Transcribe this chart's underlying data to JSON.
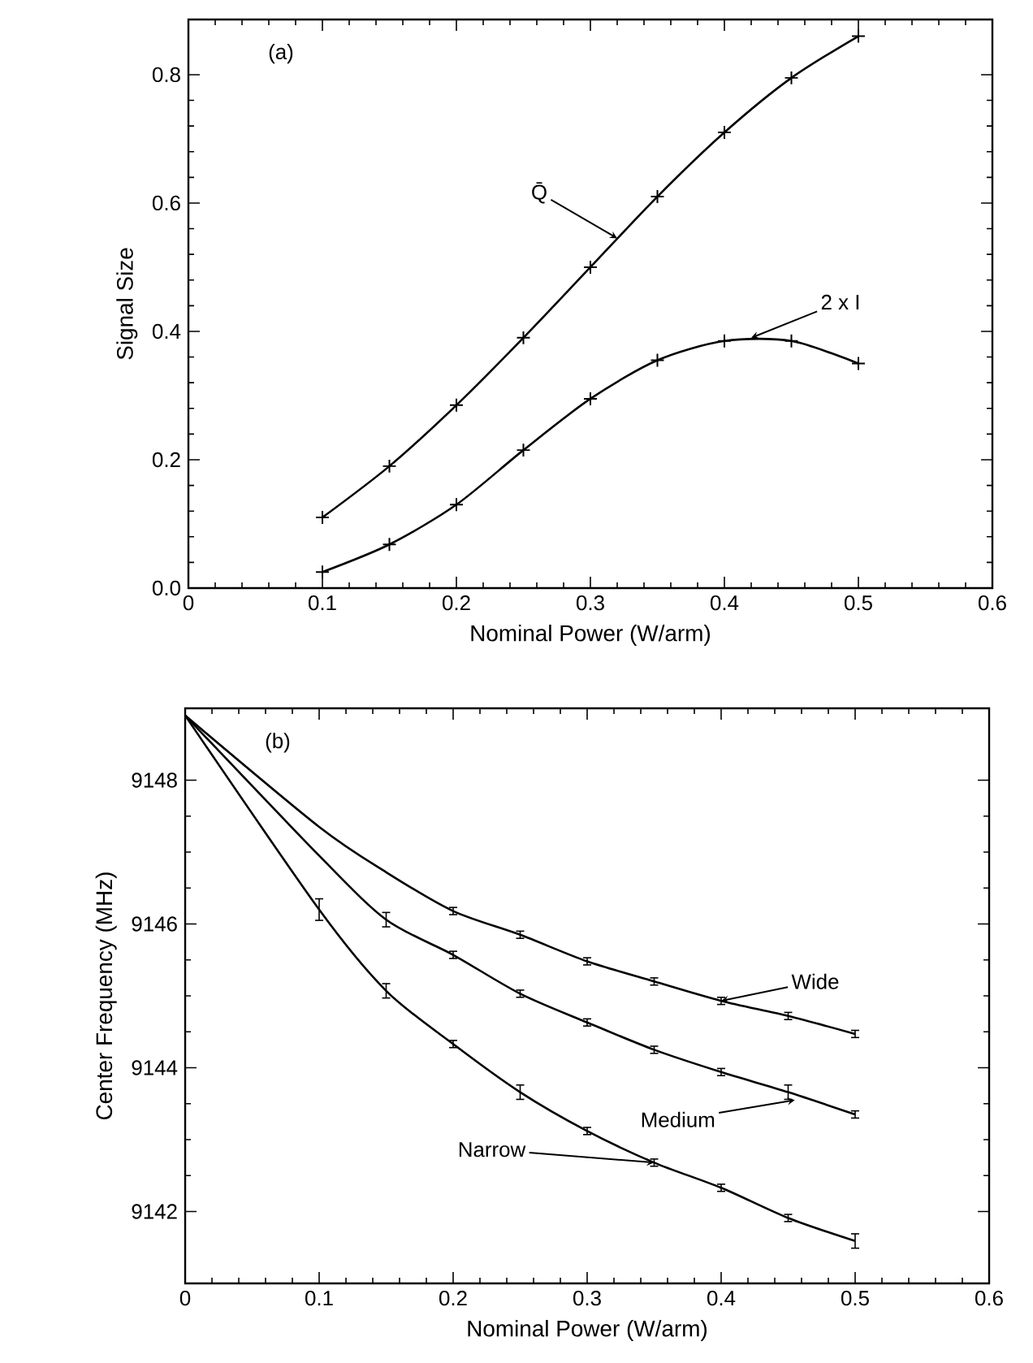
{
  "chart_data": [
    {
      "type": "line",
      "xlabel": "Nominal Power (W/arm)",
      "ylabel": "Signal Size",
      "marker": "cross",
      "line_style": "solid",
      "xlim": [
        0,
        0.6
      ],
      "ylim": [
        0,
        0.886
      ],
      "xticks": [
        0,
        0.1,
        0.2,
        0.3,
        0.4,
        0.5,
        0.6
      ],
      "yticks": [
        {
          "value": 0,
          "label": "0.0"
        },
        0.2,
        0.4,
        0.6,
        0.8
      ],
      "series": [
        {
          "color": "#000000",
          "x": [
            0.1,
            0.15,
            0.2,
            0.25,
            0.3,
            0.35,
            0.4,
            0.45,
            0.5
          ],
          "values": [
            0.11,
            0.19,
            0.285,
            0.39,
            0.5,
            0.61,
            0.71,
            0.795,
            0.86
          ]
        },
        {
          "color": "#000000",
          "x": [
            0.1,
            0.15,
            0.2,
            0.25,
            0.3,
            0.35,
            0.4,
            0.45,
            0.5
          ],
          "values": [
            0.025,
            0.068,
            0.13,
            0.215,
            0.295,
            0.355,
            0.385,
            0.385,
            0.35
          ]
        }
      ],
      "annotations": [
        "(a)",
        {
          "text": "Q̄",
          "x": 0.32,
          "y": 0.545
        },
        {
          "text": "2 x I",
          "x": 0.42,
          "y": 0.39
        }
      ]
    },
    {
      "type": "line",
      "xlabel": "Nominal Power (W/arm)",
      "ylabel": "Center Frequency (MHz)",
      "marker": "none",
      "line_style": "solid",
      "xlim": [
        0,
        0.6
      ],
      "ylim": [
        9141,
        9149
      ],
      "xticks": [
        0,
        0.1,
        0.2,
        0.3,
        0.4,
        0.5,
        0.6
      ],
      "yticks": [
        9142,
        9144,
        9146,
        9148
      ],
      "series": [
        {
          "color": "#000000",
          "x": [
            0,
            0.1,
            0.15,
            0.2,
            0.25,
            0.3,
            0.35,
            0.4,
            0.45,
            0.5
          ],
          "values": [
            9148.9,
            9147.35,
            9146.72,
            9146.18,
            9145.85,
            9145.48,
            9145.2,
            9144.93,
            9144.72,
            9144.47
          ],
          "errors": [
            null,
            null,
            null,
            0.05,
            0.05,
            0.05,
            0.05,
            0.05,
            0.05,
            0.05
          ]
        },
        {
          "color": "#000000",
          "x": [
            0,
            0.1,
            0.15,
            0.2,
            0.25,
            0.3,
            0.35,
            0.4,
            0.45,
            0.5
          ],
          "values": [
            9148.9,
            9146.95,
            9146.06,
            9145.57,
            9145.03,
            9144.63,
            9144.25,
            9143.94,
            9143.66,
            9143.35
          ],
          "errors": [
            null,
            null,
            0.1,
            0.05,
            0.05,
            0.05,
            0.05,
            0.05,
            0.1,
            0.05
          ]
        },
        {
          "color": "#000000",
          "x": [
            0,
            0.1,
            0.15,
            0.2,
            0.25,
            0.3,
            0.35,
            0.4,
            0.45,
            0.5
          ],
          "values": [
            9148.9,
            9146.2,
            9145.07,
            9144.33,
            9143.66,
            9143.12,
            9142.68,
            9142.33,
            9141.91,
            9141.59
          ],
          "errors": [
            null,
            0.15,
            0.1,
            0.05,
            0.1,
            0.05,
            0.05,
            0.05,
            0.05,
            0.1
          ]
        }
      ],
      "annotations": [
        "(b)",
        {
          "text": "Wide",
          "x": 0.4,
          "y": 9144.93
        },
        {
          "text": "Medium",
          "x": 0.455,
          "y": 9143.55
        },
        {
          "text": "Narrow",
          "x": 0.35,
          "y": 9142.68
        }
      ]
    }
  ]
}
